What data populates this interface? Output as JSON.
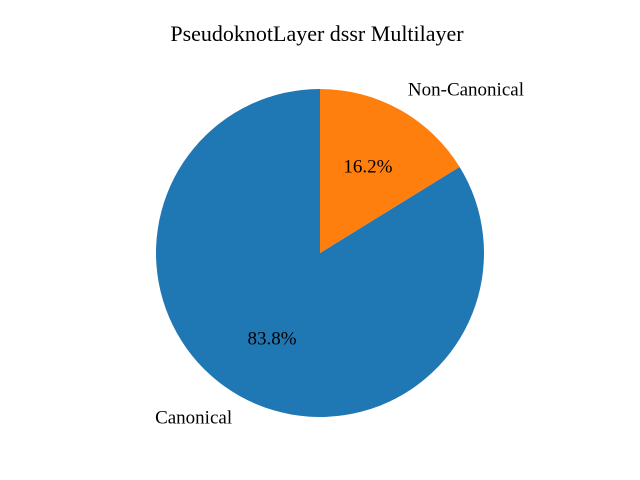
{
  "chart_data": {
    "type": "pie",
    "title": "PseudoknotLayer dssr Multilayer",
    "slices": [
      {
        "label": "Canonical",
        "value": 83.8,
        "pct_label": "83.8%",
        "color": "#1f77b4"
      },
      {
        "label": "Non-Canonical",
        "value": 16.2,
        "pct_label": "16.2%",
        "color": "#ff7f0e"
      }
    ],
    "start_angle_deg": 90,
    "direction": "counterclockwise"
  }
}
